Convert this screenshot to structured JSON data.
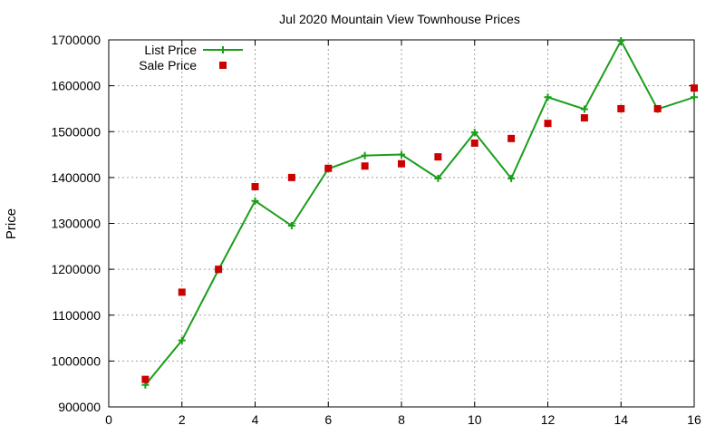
{
  "chart_data": {
    "type": "line",
    "title": "Jul 2020 Mountain View Townhouse Prices",
    "xlabel": "",
    "ylabel": "Price",
    "xlim": [
      0,
      16
    ],
    "ylim": [
      900000,
      1700000
    ],
    "x_ticks": [
      0,
      2,
      4,
      6,
      8,
      10,
      12,
      14,
      16
    ],
    "y_ticks": [
      900000,
      1000000,
      1100000,
      1200000,
      1300000,
      1400000,
      1500000,
      1600000,
      1700000
    ],
    "grid": true,
    "legend_position": "top-left",
    "series": [
      {
        "name": "List Price",
        "style": "lines+crosses",
        "color": "#1a9e1a",
        "x": [
          1,
          2,
          3,
          4,
          5,
          6,
          7,
          8,
          9,
          10,
          11,
          12,
          13,
          14,
          15,
          16
        ],
        "values": [
          948000,
          1045000,
          1199000,
          1349000,
          1295000,
          1419000,
          1448000,
          1450000,
          1398000,
          1498000,
          1398000,
          1575000,
          1549000,
          1698000,
          1549000,
          1575000
        ]
      },
      {
        "name": "Sale Price",
        "style": "points",
        "color": "#cc0000",
        "x": [
          1,
          2,
          3,
          4,
          5,
          6,
          7,
          8,
          9,
          10,
          11,
          12,
          13,
          14,
          15,
          16
        ],
        "values": [
          960000,
          1150000,
          1200000,
          1380000,
          1400000,
          1420000,
          1425000,
          1430000,
          1445000,
          1475000,
          1485000,
          1518000,
          1530000,
          1550000,
          1550000,
          1595000
        ]
      }
    ]
  }
}
